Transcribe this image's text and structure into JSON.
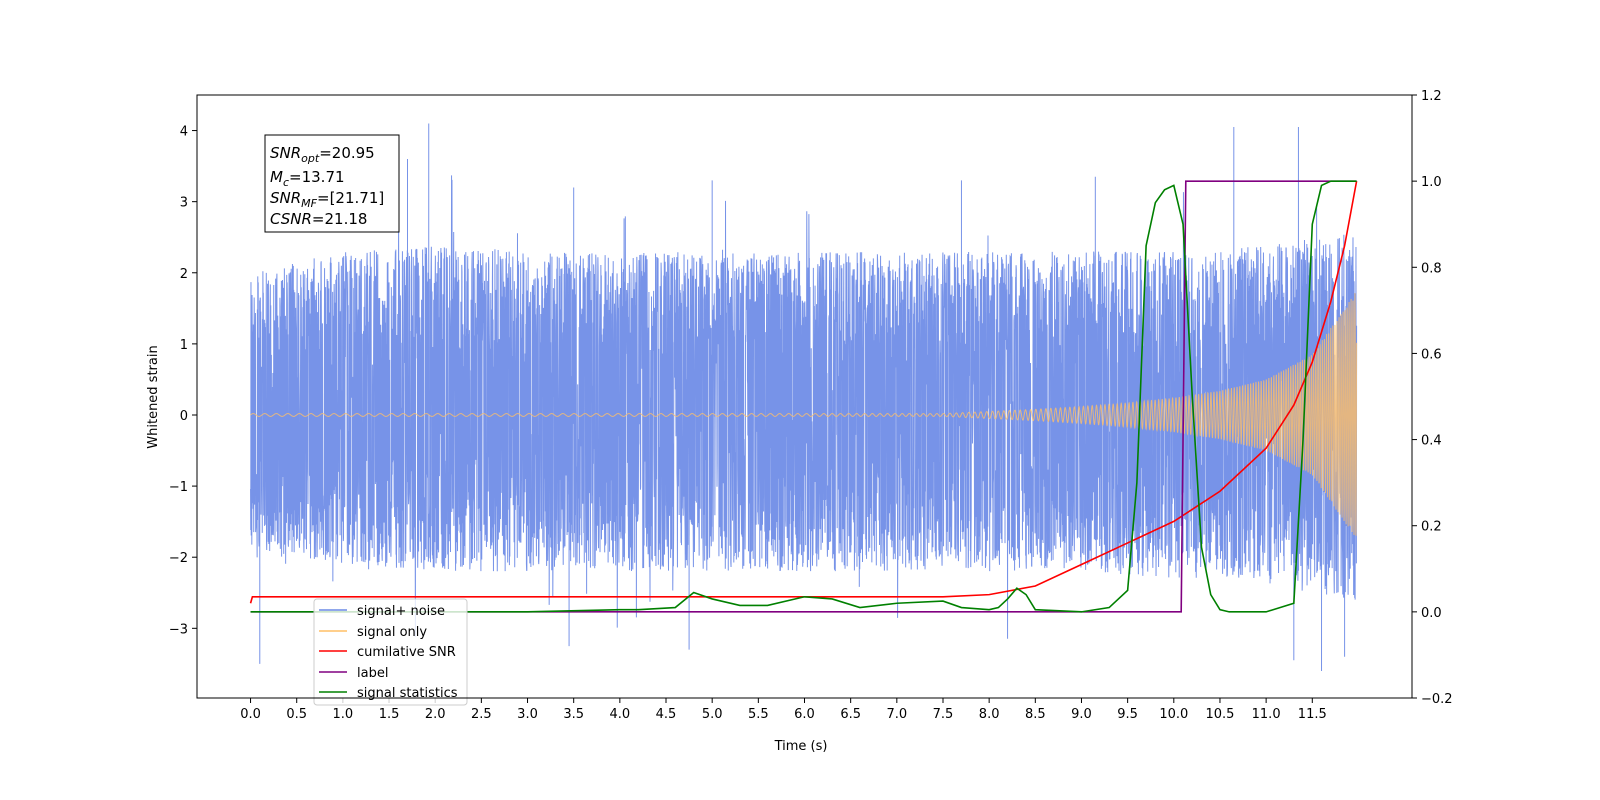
{
  "chart_data": {
    "type": "line",
    "title": "",
    "xlabel": "Time (s)",
    "ylabel": "Whitened strain",
    "xlim": [
      -0.58,
      12.58
    ],
    "ylim_left": [
      -3.98,
      4.5
    ],
    "ylim_right": [
      -0.2,
      1.2
    ],
    "x_ticks": [
      "0.0",
      "0.5",
      "1.0",
      "1.5",
      "2.0",
      "2.5",
      "3.0",
      "3.5",
      "4.0",
      "4.5",
      "5.0",
      "5.5",
      "6.0",
      "6.5",
      "7.0",
      "7.5",
      "8.0",
      "8.5",
      "9.0",
      "9.5",
      "10.0",
      "10.5",
      "11.0",
      "11.5"
    ],
    "y_ticks_left": [
      -3,
      -2,
      -1,
      0,
      1,
      2,
      3,
      4
    ],
    "y_ticks_left_labels": [
      "−3",
      "−2",
      "−1",
      "0",
      "1",
      "2",
      "3",
      "4"
    ],
    "y_ticks_right": [
      -0.2,
      0.0,
      0.2,
      0.4,
      0.6,
      0.8,
      1.0,
      1.2
    ],
    "y_ticks_right_labels": [
      "−0.2",
      "0.0",
      "0.2",
      "0.4",
      "0.6",
      "0.8",
      "1.0",
      "1.2"
    ],
    "grid": false,
    "annotation": {
      "lines": [
        {
          "base": "SNR",
          "sub": "opt",
          "value": "=20.95"
        },
        {
          "base": "M",
          "sub": "c",
          "value": "=13.71"
        },
        {
          "base": "SNR",
          "sub": "MF",
          "value": "=[21.71]"
        },
        {
          "base": "CSNR",
          "sub": "",
          "value": "=21.18"
        }
      ]
    },
    "legend": {
      "placement": "lower-left",
      "entries": [
        {
          "name": "signal+ noise",
          "color": "#6b8ae6"
        },
        {
          "name": "signal only",
          "color": "#ffbf66"
        },
        {
          "name": "cumilative SNR",
          "color": "#ff0000"
        },
        {
          "name": "label",
          "color": "#800080"
        },
        {
          "name": "signal statistics",
          "color": "#008000"
        }
      ]
    },
    "series": [
      {
        "name": "signal+ noise",
        "color": "#6b8ae6",
        "axis": "left",
        "x_start": 0.0,
        "x_end": 11.98,
        "envelope": {
          "x": [
            0.0,
            1.0,
            2.0,
            3.0,
            4.0,
            5.0,
            6.0,
            7.0,
            8.0,
            9.0,
            10.0,
            10.5,
            11.0,
            11.5,
            11.98
          ],
          "upper": [
            2.0,
            2.3,
            2.4,
            2.3,
            2.3,
            2.3,
            2.3,
            2.3,
            2.3,
            2.3,
            2.3,
            2.3,
            2.4,
            2.5,
            2.6
          ],
          "lower": [
            -2.0,
            -2.1,
            -2.2,
            -2.2,
            -2.2,
            -2.2,
            -2.2,
            -2.2,
            -2.2,
            -2.2,
            -2.3,
            -2.3,
            -2.4,
            -2.5,
            -2.6
          ]
        },
        "spikes": [
          {
            "x": 0.1,
            "y": -3.5
          },
          {
            "x": 1.93,
            "y": 4.1
          },
          {
            "x": 1.7,
            "y": 3.6
          },
          {
            "x": 3.5,
            "y": 3.2
          },
          {
            "x": 4.75,
            "y": -3.3
          },
          {
            "x": 3.45,
            "y": -3.25
          },
          {
            "x": 10.65,
            "y": 4.05
          },
          {
            "x": 11.35,
            "y": 4.05
          },
          {
            "x": 11.3,
            "y": -3.45
          },
          {
            "x": 11.6,
            "y": -3.6
          },
          {
            "x": 11.85,
            "y": -3.4
          },
          {
            "x": 5.0,
            "y": 3.3
          },
          {
            "x": 9.15,
            "y": 3.35
          },
          {
            "x": 7.7,
            "y": 3.3
          }
        ]
      },
      {
        "name": "signal only",
        "color": "#ffbf66",
        "axis": "left",
        "x": [
          0.0,
          7.5,
          8.0,
          8.5,
          9.0,
          9.5,
          10.0,
          10.5,
          11.0,
          11.5,
          11.98
        ],
        "amplitude": [
          0.02,
          0.02,
          0.05,
          0.08,
          0.12,
          0.17,
          0.24,
          0.34,
          0.5,
          0.85,
          1.75
        ]
      },
      {
        "name": "cumilative SNR",
        "color": "#ff0000",
        "axis": "right",
        "x": [
          0.0,
          0.02,
          7.5,
          8.0,
          8.5,
          9.0,
          9.5,
          10.0,
          10.5,
          11.0,
          11.3,
          11.5,
          11.7,
          11.85,
          11.98
        ],
        "y": [
          0.02,
          0.035,
          0.035,
          0.04,
          0.06,
          0.11,
          0.16,
          0.21,
          0.28,
          0.38,
          0.48,
          0.58,
          0.72,
          0.85,
          1.0
        ]
      },
      {
        "name": "label",
        "color": "#800080",
        "axis": "right",
        "x": [
          0.0,
          10.08,
          10.13,
          11.98
        ],
        "y": [
          0.0,
          0.0,
          1.0,
          1.0
        ]
      },
      {
        "name": "signal statistics",
        "color": "#008000",
        "axis": "right",
        "x": [
          0.0,
          3.0,
          4.0,
          4.2,
          4.6,
          4.8,
          5.0,
          5.3,
          5.6,
          6.0,
          6.3,
          6.6,
          7.0,
          7.5,
          7.7,
          8.0,
          8.1,
          8.2,
          8.3,
          8.4,
          8.5,
          9.0,
          9.3,
          9.5,
          9.6,
          9.7,
          9.8,
          9.9,
          10.0,
          10.1,
          10.2,
          10.3,
          10.4,
          10.5,
          10.6,
          11.0,
          11.3,
          11.4,
          11.5,
          11.6,
          11.7,
          11.98
        ],
        "y": [
          0.0,
          0.0,
          0.005,
          0.005,
          0.01,
          0.045,
          0.03,
          0.015,
          0.015,
          0.035,
          0.03,
          0.01,
          0.02,
          0.025,
          0.01,
          0.005,
          0.01,
          0.03,
          0.055,
          0.04,
          0.005,
          0.0,
          0.01,
          0.05,
          0.3,
          0.85,
          0.95,
          0.98,
          0.99,
          0.9,
          0.5,
          0.15,
          0.04,
          0.005,
          0.0,
          0.0,
          0.02,
          0.4,
          0.9,
          0.99,
          1.0,
          1.0
        ]
      }
    ]
  }
}
